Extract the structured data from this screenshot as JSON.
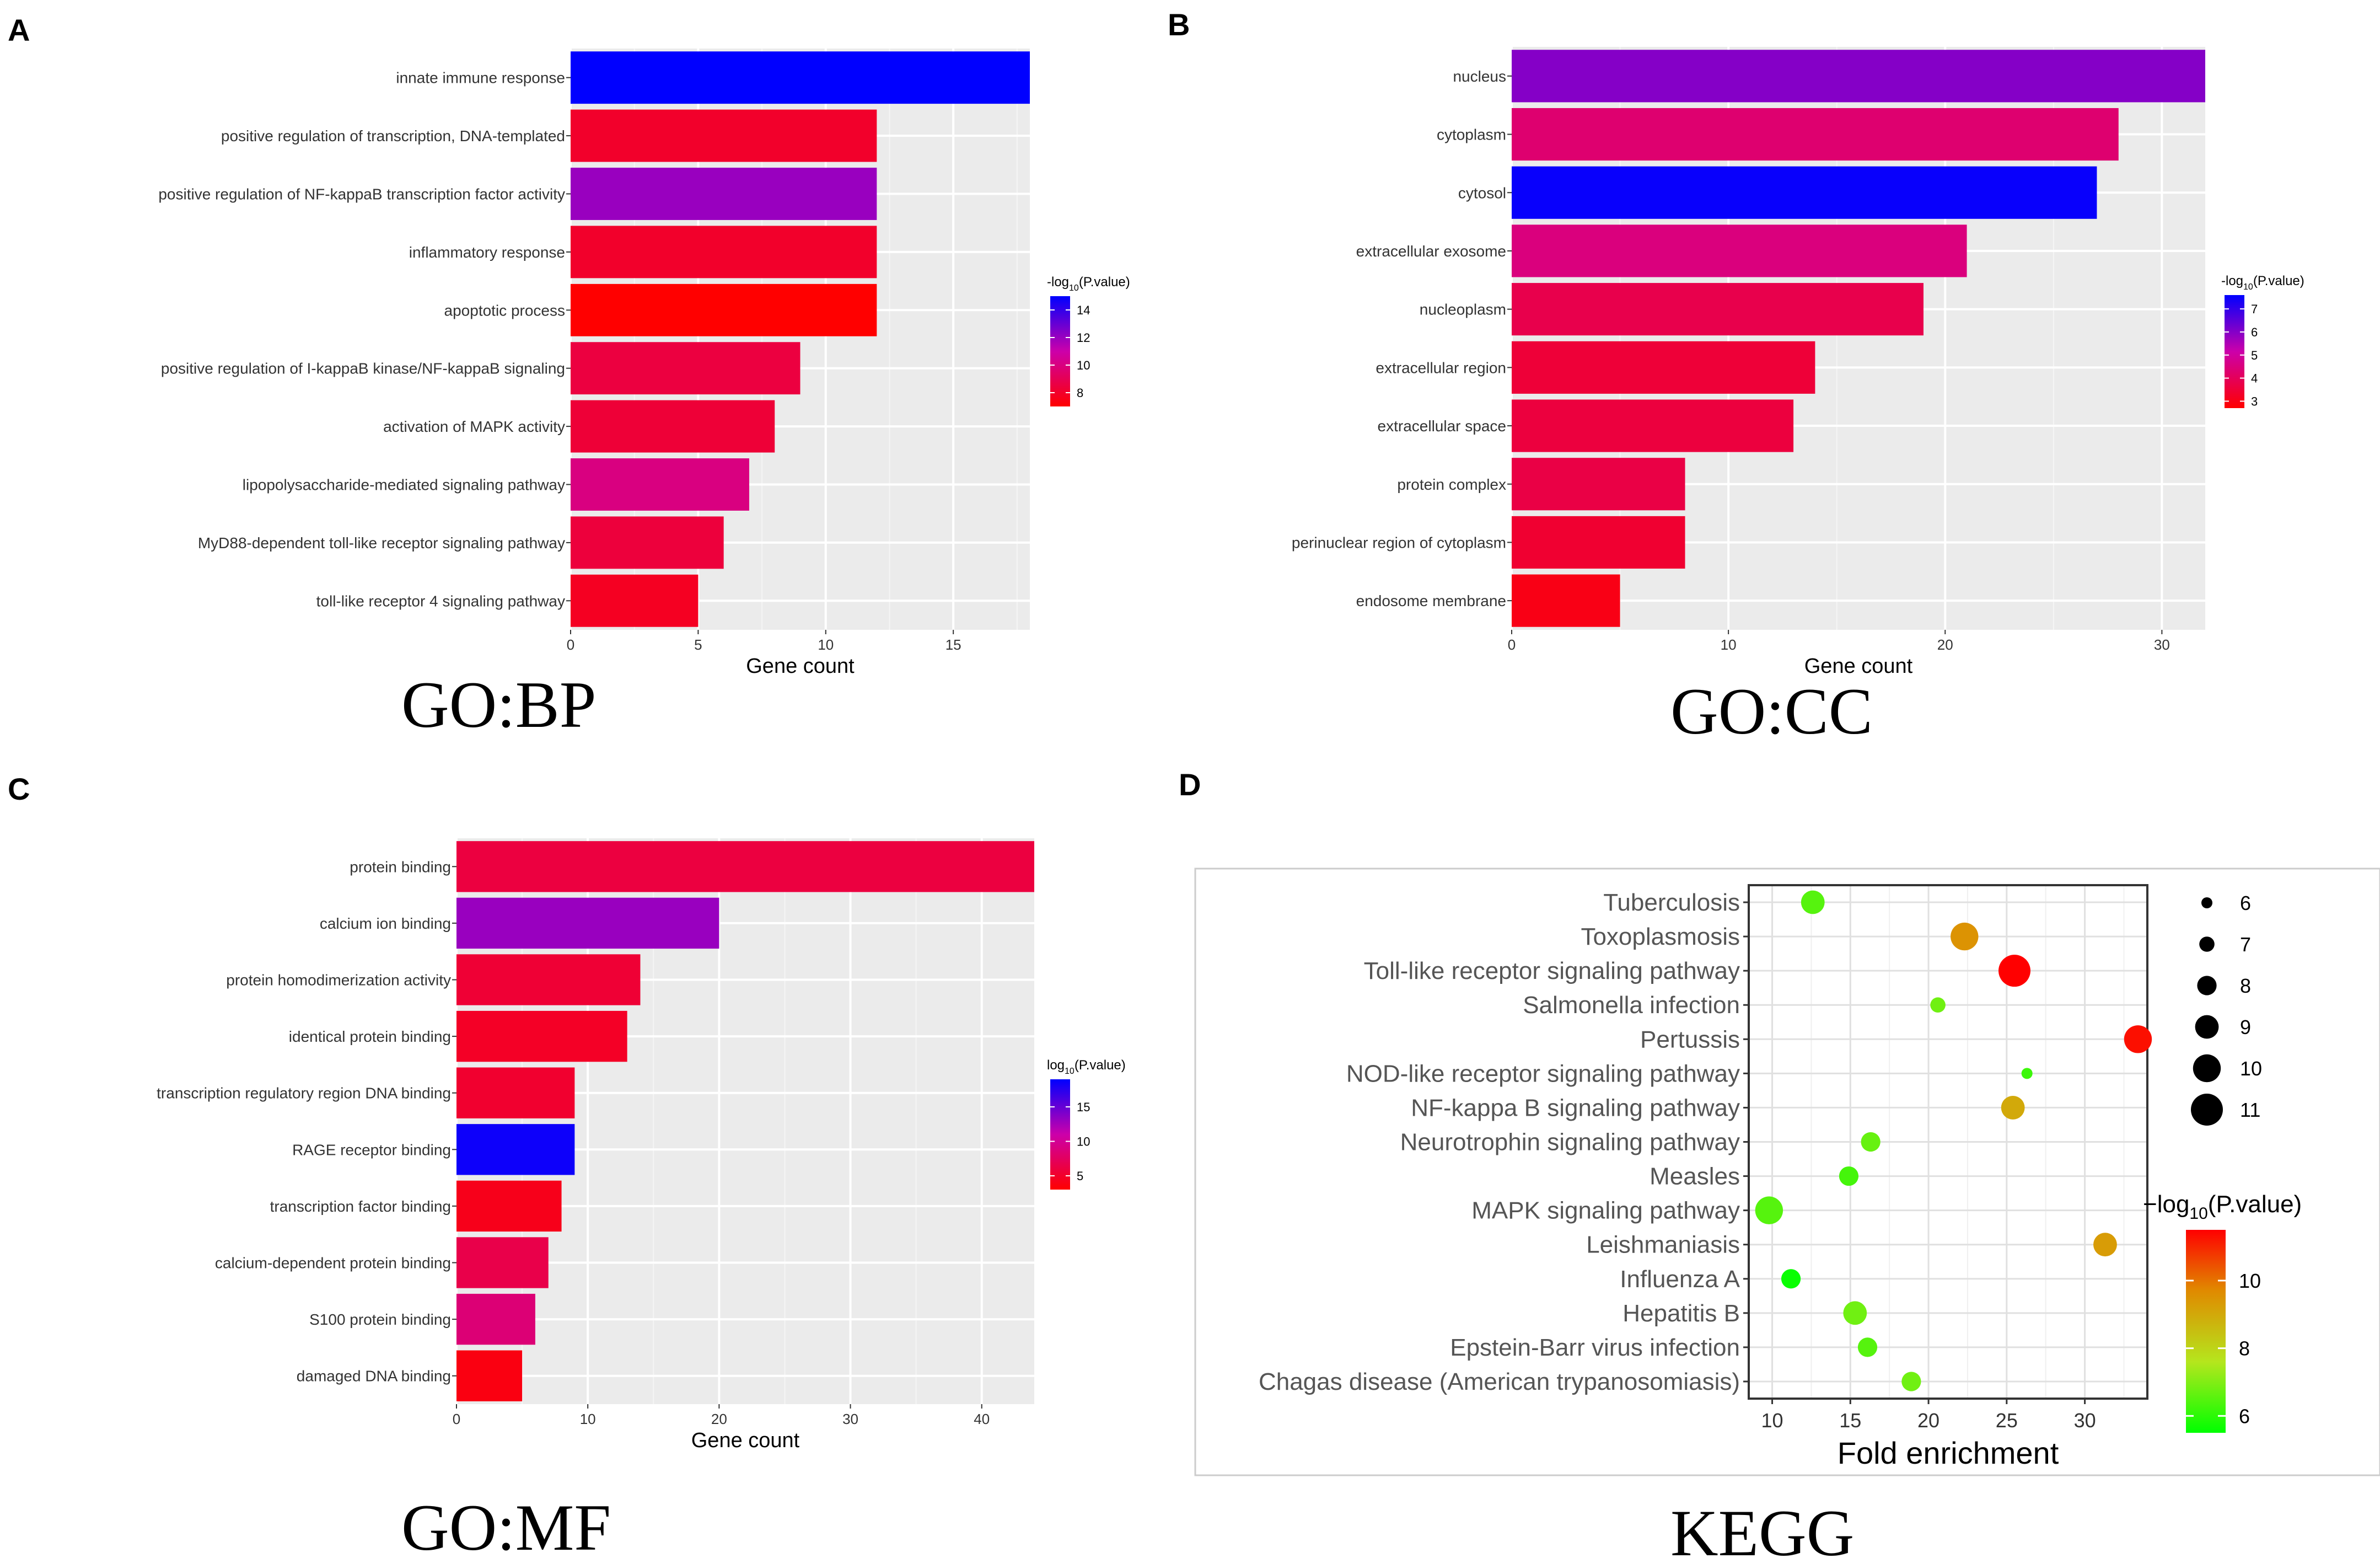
{
  "panels": {
    "A": {
      "letter": "A",
      "caption": "GO:BP"
    },
    "B": {
      "letter": "B",
      "caption": "GO:CC"
    },
    "C": {
      "letter": "C",
      "caption": "GO:MF"
    },
    "D": {
      "letter": "D",
      "caption": "KEGG"
    }
  },
  "chart_data": [
    {
      "id": "A",
      "type": "bar",
      "orientation": "horizontal",
      "title": "GO:BP",
      "xlabel": "Gene count",
      "ylabel": "",
      "xlim": [
        0,
        18
      ],
      "xticks": [
        0,
        5,
        10,
        15
      ],
      "categories": [
        "innate immune response",
        "positive regulation of transcription, DNA-templated",
        "positive regulation of NF-kappaB transcription factor activity",
        "inflammatory response",
        "apoptotic process",
        "positive regulation of I-kappaB kinase/NF-kappaB signaling",
        "activation of MAPK activity",
        "lipopolysaccharide-mediated signaling pathway",
        "MyD88-dependent toll-like receptor signaling pathway",
        "toll-like receptor 4 signaling pathway"
      ],
      "values": [
        18,
        12,
        12,
        12,
        12,
        9,
        8,
        7,
        6,
        5
      ],
      "color_values": [
        15,
        8,
        12,
        8,
        7,
        8.5,
        8.3,
        10,
        8.4,
        7.8
      ],
      "color_label": "-log10(P.value)",
      "color_range": [
        7,
        15
      ],
      "color_ticks": [
        14,
        12,
        10,
        8
      ],
      "legend_title_prefix": "-log",
      "legend_title_sub": "10",
      "legend_title_suffix": "(P.value)"
    },
    {
      "id": "B",
      "type": "bar",
      "orientation": "horizontal",
      "title": "GO:CC",
      "xlabel": "Gene count",
      "ylabel": "",
      "xlim": [
        0,
        32
      ],
      "xticks": [
        0,
        10,
        20,
        30
      ],
      "categories": [
        "nucleus",
        "cytoplasm",
        "cytosol",
        "extracellular exosome",
        "nucleoplasm",
        "extracellular region",
        "extracellular space",
        "protein complex",
        "perinuclear region of cytoplasm",
        "endosome membrane"
      ],
      "values": [
        32,
        28,
        27,
        21,
        19,
        14,
        13,
        8,
        8,
        5
      ],
      "color_values": [
        6.0,
        4.3,
        7.5,
        4.5,
        3.8,
        3.5,
        3.6,
        3.7,
        3.4,
        3.0
      ],
      "color_label": "-log10(P.value)",
      "color_range": [
        2.7,
        7.6
      ],
      "color_ticks": [
        7,
        6,
        5,
        4,
        3
      ],
      "legend_title_prefix": "-log",
      "legend_title_sub": "10",
      "legend_title_suffix": "(P.value)"
    },
    {
      "id": "C",
      "type": "bar",
      "orientation": "horizontal",
      "title": "GO:MF",
      "xlabel": "Gene count",
      "ylabel": "",
      "xlim": [
        0,
        44
      ],
      "xticks": [
        0,
        10,
        20,
        30,
        40
      ],
      "categories": [
        "protein binding",
        "calcium ion binding",
        "protein homodimerization activity",
        "identical protein binding",
        "transcription regulatory region DNA binding",
        "RAGE receptor binding",
        "transcription factor binding",
        "calcium-dependent protein binding",
        "S100 protein binding",
        "damaged DNA binding"
      ],
      "values": [
        44,
        20,
        14,
        13,
        9,
        9,
        8,
        7,
        6,
        5
      ],
      "color_values": [
        6.0,
        13.0,
        5.5,
        4.8,
        5.2,
        18.5,
        4.2,
        6.5,
        8.5,
        3.8
      ],
      "color_label": "log10(P.value)",
      "color_range": [
        3,
        19
      ],
      "color_ticks": [
        15,
        10,
        5
      ],
      "legend_title_prefix": "log",
      "legend_title_sub": "10",
      "legend_title_suffix": "(P.value)"
    },
    {
      "id": "D",
      "type": "scatter",
      "title": "KEGG",
      "xlabel": "Fold enrichment",
      "ylabel": "",
      "xlim": [
        8.5,
        34
      ],
      "xticks": [
        10,
        15,
        20,
        25,
        30
      ],
      "categories": [
        "Tuberculosis",
        "Toxoplasmosis",
        "Toll-like receptor signaling pathway",
        "Salmonella infection",
        "Pertussis",
        "NOD-like receptor signaling pathway",
        "NF-kappa B signaling pathway",
        "Neurotrophin signaling pathway",
        "Measles",
        "MAPK signaling pathway",
        "Leishmaniasis",
        "Influenza A",
        "Hepatitis B",
        "Epstein-Barr virus infection",
        "Chagas disease (American trypanosomiasis)"
      ],
      "x": [
        12.6,
        22.3,
        25.5,
        20.6,
        33.4,
        26.3,
        25.4,
        16.3,
        14.9,
        9.8,
        31.3,
        11.2,
        15.3,
        16.1,
        18.9
      ],
      "size": [
        9,
        10,
        11,
        7,
        10,
        6,
        9,
        8,
        8,
        10,
        9,
        8,
        9,
        8,
        8
      ],
      "color_values": [
        6.5,
        9.5,
        11.5,
        6.8,
        11.3,
        6.2,
        9.0,
        6.7,
        6.3,
        6.5,
        9.3,
        5.6,
        6.8,
        6.5,
        6.8
      ],
      "size_legend_title": "",
      "size_ticks": [
        6,
        7,
        8,
        9,
        10,
        11
      ],
      "color_label": "-log10(P.value)",
      "color_range": [
        5.5,
        11.5
      ],
      "color_ticks": [
        10,
        8,
        6
      ],
      "legend_title_prefix": "−log",
      "legend_title_sub": "10",
      "legend_title_suffix": "(P.value)"
    }
  ]
}
